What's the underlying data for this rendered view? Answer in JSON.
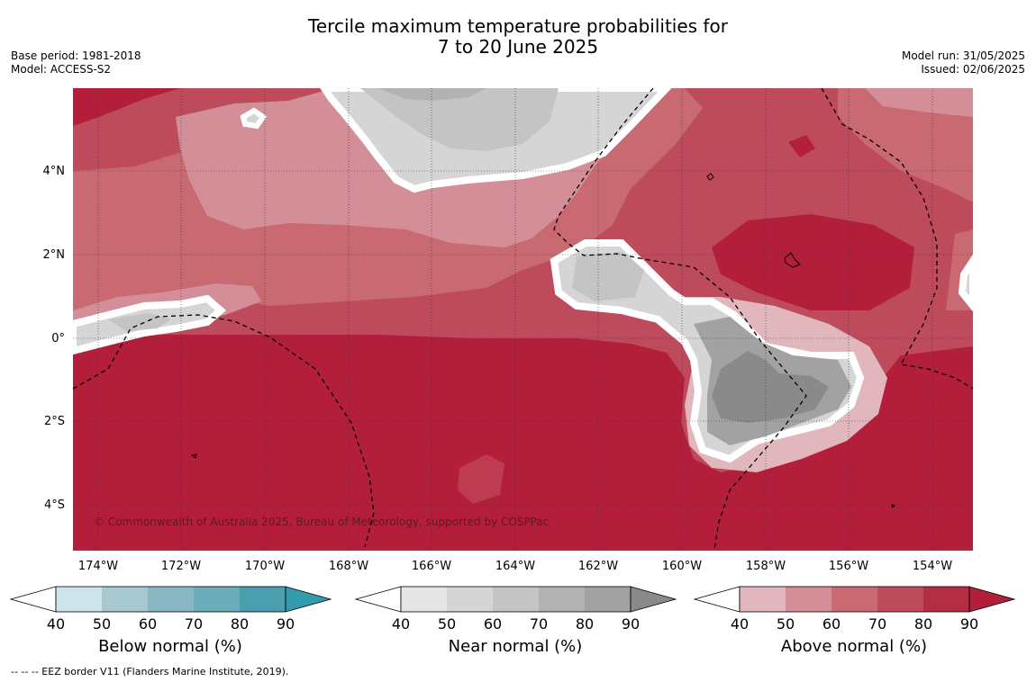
{
  "title_line1": "Tercile maximum temperature probabilities for",
  "title_line2": "7 to 20 June 2025",
  "meta_left": {
    "base_period": "Base period: 1981-2018",
    "model": "Model: ACCESS-S2"
  },
  "meta_right": {
    "model_run": "Model run: 31/05/2025",
    "issued": "Issued: 02/06/2025"
  },
  "map": {
    "latitude_labels": [
      "4°N",
      "2°N",
      "0°",
      "2°S",
      "4°S"
    ],
    "longitude_labels": [
      "174°W",
      "172°W",
      "170°W",
      "168°W",
      "166°W",
      "164°W",
      "162°W",
      "160°W",
      "158°W",
      "156°W",
      "154°W"
    ],
    "copyright": "© Commonwealth of Australia 2025, Bureau of Meteorology, supported by COSPPac",
    "colors": {
      "above_50": "#e1b7bd",
      "above_60": "#d48e97",
      "above_70": "#c96972",
      "above_80": "#bd4b5b",
      "above_90": "#b31e3b",
      "near_50": "#e6e6e6",
      "near_60": "#d5d5d5",
      "near_70": "#c4c4c4",
      "near_80": "#b2b2b2",
      "near_90": "#8c8c8c"
    }
  },
  "colorbars": [
    {
      "title": "Below normal (%)",
      "ticks": [
        "40",
        "50",
        "60",
        "70",
        "80",
        "90"
      ],
      "colors": [
        "#ffffff",
        "#cde4ea",
        "#a8c8cf",
        "#89b8c4",
        "#6badb9",
        "#4a9eae",
        "#339bab"
      ]
    },
    {
      "title": "Near normal (%)",
      "ticks": [
        "40",
        "50",
        "60",
        "70",
        "80",
        "90"
      ],
      "colors": [
        "#ffffff",
        "#e6e6e6",
        "#d5d5d5",
        "#c4c4c4",
        "#b2b2b2",
        "#a2a2a2",
        "#8a8a8a"
      ]
    },
    {
      "title": "Above normal (%)",
      "ticks": [
        "40",
        "50",
        "60",
        "70",
        "80",
        "90"
      ],
      "colors": [
        "#ffffff",
        "#e1b7bd",
        "#d48e97",
        "#c96972",
        "#bd4b5b",
        "#b32e45",
        "#b31e3b"
      ]
    }
  ],
  "footnote": "--  --  -- EEZ border V11 (Flanders Marine Institute, 2019)."
}
